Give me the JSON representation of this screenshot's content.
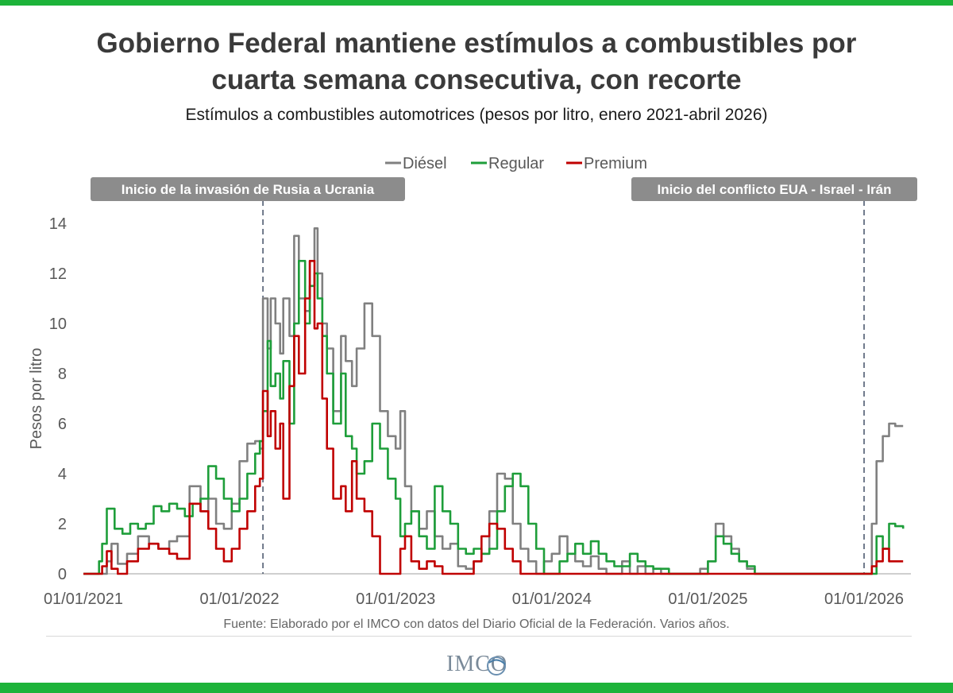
{
  "header": {
    "title_line1": "Gobierno Federal mantiene estímulos a combustibles por",
    "title_line2": "cuarta semana consecutiva, con recorte",
    "subtitle": "Estímulos a combustibles automotrices (pesos por litro, enero 2021-abril 2026)"
  },
  "footer": {
    "source": "Fuente: Elaborado por el IMCO con datos del Diario Oficial de la Federación. Varios años.",
    "logo_text": "IMCO"
  },
  "colors": {
    "brand_green": "#1db33a",
    "diesel": "#808080",
    "regular": "#1e9e3a",
    "premium": "#c00000",
    "annotation_bg": "#8c8c8c",
    "axis": "#bfbfbf",
    "event_line": "#4f5b70"
  },
  "chart_data": {
    "type": "line",
    "title": "Estímulos a combustibles automotrices (pesos por litro, enero 2021-abril 2026)",
    "xlabel": "",
    "ylabel": "Pesos por litro",
    "ylim": [
      0,
      14
    ],
    "yticks": [
      0,
      2,
      4,
      6,
      8,
      10,
      12,
      14
    ],
    "xlim": [
      2021.0,
      2026.3
    ],
    "xticks": [
      {
        "value": 2021.0,
        "label": "01/01/2021"
      },
      {
        "value": 2022.0,
        "label": "01/01/2022"
      },
      {
        "value": 2023.0,
        "label": "01/01/2023"
      },
      {
        "value": 2024.0,
        "label": "01/01/2024"
      },
      {
        "value": 2025.0,
        "label": "01/01/2025"
      },
      {
        "value": 2026.0,
        "label": "01/01/2026"
      }
    ],
    "legend_position": "top-center",
    "annotations": [
      {
        "x": 2022.15,
        "label": "Inicio de la invasión  de Rusia a Ucrania"
      },
      {
        "x": 2026.0,
        "label": "Inicio del conflicto EUA - Israel - Irán"
      }
    ],
    "series": [
      {
        "name": "Diésel",
        "x": [
          2021.0,
          2021.08,
          2021.12,
          2021.15,
          2021.18,
          2021.22,
          2021.28,
          2021.35,
          2021.42,
          2021.48,
          2021.55,
          2021.6,
          2021.68,
          2021.75,
          2021.8,
          2021.85,
          2021.9,
          2021.95,
          2022.0,
          2022.05,
          2022.1,
          2022.13,
          2022.15,
          2022.18,
          2022.2,
          2022.23,
          2022.26,
          2022.28,
          2022.32,
          2022.35,
          2022.38,
          2022.42,
          2022.45,
          2022.48,
          2022.5,
          2022.53,
          2022.56,
          2022.6,
          2022.65,
          2022.68,
          2022.72,
          2022.75,
          2022.8,
          2022.85,
          2022.9,
          2022.95,
          2023.0,
          2023.03,
          2023.06,
          2023.1,
          2023.15,
          2023.2,
          2023.25,
          2023.3,
          2023.35,
          2023.4,
          2023.45,
          2023.5,
          2023.55,
          2023.6,
          2023.65,
          2023.7,
          2023.75,
          2023.8,
          2023.85,
          2023.9,
          2023.95,
          2024.0,
          2024.05,
          2024.1,
          2024.15,
          2024.2,
          2024.25,
          2024.3,
          2024.35,
          2024.4,
          2024.45,
          2024.5,
          2024.55,
          2024.6,
          2024.65,
          2024.7,
          2024.75,
          2024.8,
          2024.85,
          2024.9,
          2024.95,
          2025.0,
          2025.05,
          2025.1,
          2025.15,
          2025.2,
          2025.25,
          2025.3,
          2025.35,
          2025.5,
          2025.7,
          2025.9,
          2026.0,
          2026.05,
          2026.08,
          2026.12,
          2026.16,
          2026.2,
          2026.25
        ],
        "values": [
          0,
          0,
          0,
          0.5,
          1.2,
          0.4,
          0.8,
          1.5,
          1.2,
          1.0,
          1.3,
          1.5,
          3.5,
          2.5,
          3.0,
          2.0,
          1.8,
          2.8,
          4.5,
          5.2,
          5.3,
          5.0,
          11.0,
          9.0,
          11.0,
          10.0,
          8.8,
          11.0,
          9.5,
          13.5,
          11.0,
          10.5,
          12.5,
          13.8,
          12.0,
          10.0,
          9.0,
          6.5,
          9.5,
          8.5,
          7.5,
          9.0,
          10.8,
          9.5,
          6.5,
          5.5,
          5.0,
          6.5,
          3.5,
          2.5,
          1.8,
          2.5,
          1.5,
          1.0,
          1.2,
          0.3,
          0.2,
          0.5,
          0.8,
          2.5,
          4.0,
          3.8,
          2.0,
          1.0,
          0.5,
          0,
          0.5,
          0.8,
          1.5,
          0.8,
          0.5,
          0.3,
          0.7,
          0.2,
          0,
          0,
          0.5,
          0,
          0.3,
          0,
          0.2,
          0,
          0,
          0,
          0,
          0,
          0.2,
          0.5,
          2.0,
          1.5,
          1.0,
          0.5,
          0.2,
          0,
          0,
          0,
          0,
          0,
          0,
          2.0,
          4.5,
          5.5,
          6.0,
          5.9,
          5.9
        ]
      },
      {
        "name": "Regular",
        "x": [
          2021.0,
          2021.08,
          2021.1,
          2021.12,
          2021.15,
          2021.2,
          2021.25,
          2021.3,
          2021.35,
          2021.4,
          2021.45,
          2021.5,
          2021.55,
          2021.6,
          2021.65,
          2021.7,
          2021.75,
          2021.8,
          2021.85,
          2021.9,
          2021.95,
          2022.0,
          2022.05,
          2022.1,
          2022.13,
          2022.15,
          2022.18,
          2022.2,
          2022.23,
          2022.26,
          2022.28,
          2022.32,
          2022.35,
          2022.38,
          2022.42,
          2022.45,
          2022.48,
          2022.5,
          2022.53,
          2022.56,
          2022.6,
          2022.65,
          2022.68,
          2022.72,
          2022.75,
          2022.8,
          2022.85,
          2022.9,
          2022.95,
          2023.0,
          2023.03,
          2023.06,
          2023.1,
          2023.15,
          2023.2,
          2023.25,
          2023.3,
          2023.35,
          2023.4,
          2023.45,
          2023.5,
          2023.55,
          2023.6,
          2023.65,
          2023.7,
          2023.75,
          2023.8,
          2023.85,
          2023.9,
          2023.95,
          2024.0,
          2024.05,
          2024.1,
          2024.15,
          2024.2,
          2024.25,
          2024.3,
          2024.35,
          2024.4,
          2024.45,
          2024.5,
          2024.55,
          2024.6,
          2024.65,
          2024.7,
          2024.75,
          2024.8,
          2024.85,
          2024.9,
          2024.95,
          2025.0,
          2025.05,
          2025.1,
          2025.15,
          2025.2,
          2025.25,
          2025.3,
          2025.35,
          2025.5,
          2025.7,
          2025.9,
          2026.0,
          2026.05,
          2026.08,
          2026.12,
          2026.16,
          2026.2,
          2026.25
        ],
        "values": [
          0,
          0,
          0.5,
          1.2,
          2.6,
          1.8,
          1.6,
          2.0,
          1.8,
          2.0,
          2.7,
          2.5,
          2.8,
          2.6,
          2.3,
          2.8,
          3.0,
          4.3,
          3.8,
          3.0,
          2.5,
          3.0,
          4.0,
          4.8,
          5.3,
          6.5,
          9.3,
          7.5,
          8.0,
          7.0,
          8.5,
          6.0,
          10.0,
          12.5,
          10.0,
          11.5,
          12.0,
          11.0,
          9.5,
          8.0,
          6.0,
          8.0,
          5.5,
          5.0,
          4.0,
          4.5,
          6.0,
          5.0,
          3.8,
          3.0,
          1.5,
          2.0,
          2.5,
          1.5,
          1.0,
          3.5,
          2.5,
          2.0,
          1.0,
          0.8,
          1.0,
          0.8,
          1.0,
          2.5,
          3.5,
          4.0,
          3.5,
          2.0,
          1.0,
          0,
          0,
          0.5,
          0.8,
          1.2,
          0.8,
          1.3,
          0.8,
          0.5,
          0.3,
          0.3,
          0.8,
          0.5,
          0.3,
          0.2,
          0.2,
          0,
          0,
          0,
          0,
          0,
          0.5,
          1.5,
          1.2,
          0.8,
          0.5,
          0.3,
          0,
          0,
          0,
          0,
          0,
          0,
          0,
          1.5,
          1.0,
          2.0,
          1.9,
          1.8
        ]
      },
      {
        "name": "Premium",
        "x": [
          2021.0,
          2021.08,
          2021.12,
          2021.15,
          2021.18,
          2021.22,
          2021.28,
          2021.35,
          2021.42,
          2021.48,
          2021.55,
          2021.6,
          2021.68,
          2021.75,
          2021.8,
          2021.85,
          2021.9,
          2021.95,
          2022.0,
          2022.05,
          2022.1,
          2022.13,
          2022.15,
          2022.18,
          2022.2,
          2022.23,
          2022.26,
          2022.28,
          2022.32,
          2022.35,
          2022.38,
          2022.42,
          2022.45,
          2022.48,
          2022.5,
          2022.53,
          2022.56,
          2022.6,
          2022.65,
          2022.68,
          2022.72,
          2022.75,
          2022.8,
          2022.85,
          2022.9,
          2022.95,
          2023.0,
          2023.03,
          2023.06,
          2023.1,
          2023.15,
          2023.2,
          2023.25,
          2023.3,
          2023.35,
          2023.4,
          2023.45,
          2023.5,
          2023.55,
          2023.6,
          2023.65,
          2023.7,
          2023.75,
          2023.8,
          2023.85,
          2023.9,
          2023.95,
          2024.0,
          2024.05,
          2024.5,
          2025.0,
          2025.5,
          2026.0,
          2026.05,
          2026.08,
          2026.12,
          2026.16,
          2026.2,
          2026.25
        ],
        "values": [
          0,
          0,
          0.3,
          0.9,
          0.2,
          0,
          0.5,
          1.0,
          1.2,
          1.0,
          0.8,
          0.6,
          2.8,
          2.5,
          1.8,
          1.0,
          0.5,
          1.0,
          1.8,
          2.5,
          3.5,
          3.8,
          7.3,
          5.5,
          6.5,
          5.0,
          6.0,
          3.0,
          7.5,
          9.5,
          8.0,
          11.0,
          12.5,
          9.8,
          10.0,
          7.0,
          5.0,
          3.0,
          3.5,
          2.5,
          4.5,
          3.0,
          2.5,
          1.5,
          0,
          0,
          0,
          1.0,
          1.5,
          0.5,
          0.2,
          0.5,
          0.3,
          0,
          0,
          0,
          0,
          0.5,
          1.5,
          2.0,
          1.8,
          1.0,
          0.5,
          0,
          0,
          0,
          0,
          0,
          0,
          0,
          0,
          0,
          0,
          0.3,
          0.5,
          1.0,
          0.5,
          0.5,
          0.5
        ]
      }
    ]
  }
}
